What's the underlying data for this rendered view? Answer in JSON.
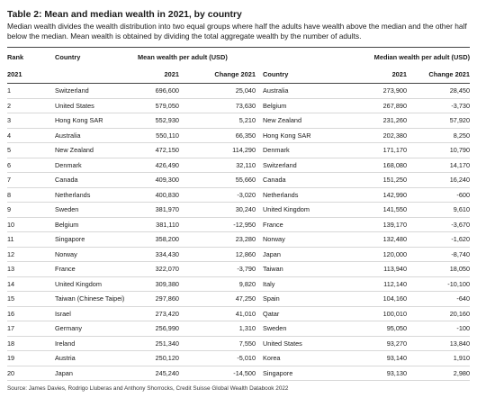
{
  "title": "Table 2: Mean and median wealth in 2021, by country",
  "subtitle": "Median wealth divides the wealth distribution into two equal groups where half the adults have wealth above the median and the other half below the median. Mean wealth is obtained by dividing the total aggregate wealth by the number of adults.",
  "headers": {
    "rank": "Rank",
    "country": "Country",
    "mean_group": "Mean wealth per adult (USD)",
    "median_group": "Median wealth per adult (USD)",
    "rank_year": "2021",
    "mean_value": "2021",
    "mean_change": "Change 2021",
    "median_country": "Country",
    "median_value": "2021",
    "median_change": "Change 2021"
  },
  "rows": [
    {
      "rank": "1",
      "mean_country": "Switzerland",
      "mean_value": "696,600",
      "mean_change": "25,040",
      "median_country": "Australia",
      "median_value": "273,900",
      "median_change": "28,450"
    },
    {
      "rank": "2",
      "mean_country": "United States",
      "mean_value": "579,050",
      "mean_change": "73,630",
      "median_country": "Belgium",
      "median_value": "267,890",
      "median_change": "-3,730"
    },
    {
      "rank": "3",
      "mean_country": "Hong Kong SAR",
      "mean_value": "552,930",
      "mean_change": "5,210",
      "median_country": "New Zealand",
      "median_value": "231,260",
      "median_change": "57,920"
    },
    {
      "rank": "4",
      "mean_country": "Australia",
      "mean_value": "550,110",
      "mean_change": "66,350",
      "median_country": "Hong Kong SAR",
      "median_value": "202,380",
      "median_change": "8,250"
    },
    {
      "rank": "5",
      "mean_country": "New Zealand",
      "mean_value": "472,150",
      "mean_change": "114,290",
      "median_country": "Denmark",
      "median_value": "171,170",
      "median_change": "10,790"
    },
    {
      "rank": "6",
      "mean_country": "Denmark",
      "mean_value": "426,490",
      "mean_change": "32,110",
      "median_country": "Switzerland",
      "median_value": "168,080",
      "median_change": "14,170"
    },
    {
      "rank": "7",
      "mean_country": "Canada",
      "mean_value": "409,300",
      "mean_change": "55,660",
      "median_country": "Canada",
      "median_value": "151,250",
      "median_change": "16,240"
    },
    {
      "rank": "8",
      "mean_country": "Netherlands",
      "mean_value": "400,830",
      "mean_change": "-3,020",
      "median_country": "Netherlands",
      "median_value": "142,990",
      "median_change": "-600"
    },
    {
      "rank": "9",
      "mean_country": "Sweden",
      "mean_value": "381,970",
      "mean_change": "30,240",
      "median_country": "United Kingdom",
      "median_value": "141,550",
      "median_change": "9,610"
    },
    {
      "rank": "10",
      "mean_country": "Belgium",
      "mean_value": "381,110",
      "mean_change": "-12,950",
      "median_country": "France",
      "median_value": "139,170",
      "median_change": "-3,670"
    },
    {
      "rank": "11",
      "mean_country": "Singapore",
      "mean_value": "358,200",
      "mean_change": "23,280",
      "median_country": "Norway",
      "median_value": "132,480",
      "median_change": "-1,620"
    },
    {
      "rank": "12",
      "mean_country": "Norway",
      "mean_value": "334,430",
      "mean_change": "12,860",
      "median_country": "Japan",
      "median_value": "120,000",
      "median_change": "-8,740"
    },
    {
      "rank": "13",
      "mean_country": "France",
      "mean_value": "322,070",
      "mean_change": "-3,790",
      "median_country": "Taiwan",
      "median_value": "113,940",
      "median_change": "18,050"
    },
    {
      "rank": "14",
      "mean_country": "United Kingdom",
      "mean_value": "309,380",
      "mean_change": "9,820",
      "median_country": "Italy",
      "median_value": "112,140",
      "median_change": "-10,100"
    },
    {
      "rank": "15",
      "mean_country": "Taiwan (Chinese Taipei)",
      "mean_value": "297,860",
      "mean_change": "47,250",
      "median_country": "Spain",
      "median_value": "104,160",
      "median_change": "-640"
    },
    {
      "rank": "16",
      "mean_country": "Israel",
      "mean_value": "273,420",
      "mean_change": "41,010",
      "median_country": "Qatar",
      "median_value": "100,010",
      "median_change": "20,160"
    },
    {
      "rank": "17",
      "mean_country": "Germany",
      "mean_value": "256,990",
      "mean_change": "1,310",
      "median_country": "Sweden",
      "median_value": "95,050",
      "median_change": "-100"
    },
    {
      "rank": "18",
      "mean_country": "Ireland",
      "mean_value": "251,340",
      "mean_change": "7,550",
      "median_country": "United States",
      "median_value": "93,270",
      "median_change": "13,840"
    },
    {
      "rank": "19",
      "mean_country": "Austria",
      "mean_value": "250,120",
      "mean_change": "-5,010",
      "median_country": "Korea",
      "median_value": "93,140",
      "median_change": "1,910"
    },
    {
      "rank": "20",
      "mean_country": "Japan",
      "mean_value": "245,240",
      "mean_change": "-14,500",
      "median_country": "Singapore",
      "median_value": "93,130",
      "median_change": "2,980"
    }
  ],
  "source": "Source: James Davies, Rodrigo Lluberas and Anthony Shorrocks, Credit Suisse Global Wealth Databook 2022"
}
